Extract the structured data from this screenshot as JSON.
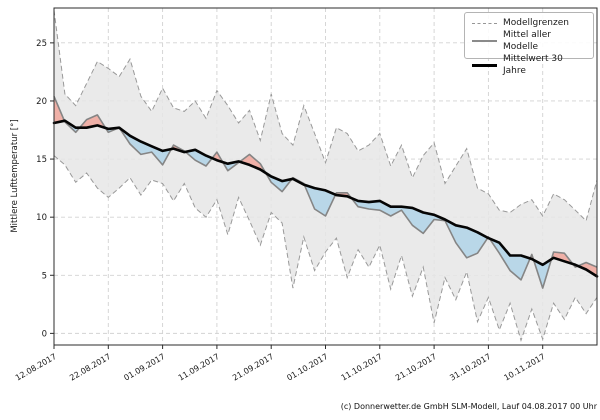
{
  "chart_data": {
    "type": "area",
    "title": "",
    "xlabel": "",
    "ylabel": "Mittlere Lufttemperatur [°]",
    "grid": true,
    "legend_position": "upper right",
    "ylim": [
      -1.0,
      28.0
    ],
    "xlim_days": [
      0,
      100
    ],
    "y_ticks": [
      0,
      5,
      10,
      15,
      20,
      25
    ],
    "x_tick_days": [
      0,
      10,
      20,
      30,
      40,
      50,
      60,
      70,
      80,
      90
    ],
    "x_tick_labels": [
      "12.08.2017",
      "22.08.2017",
      "01.09.2017",
      "11.09.2017",
      "21.09.2017",
      "01.10.2017",
      "11.10.2017",
      "21.10.2017",
      "31.10.2017",
      "10.11.2017"
    ],
    "legend": [
      {
        "label": "Modellgrenzen",
        "style": "dashed-gray-line"
      },
      {
        "label": "Mittel aller Modelle",
        "style": "solid-gray-line"
      },
      {
        "label": "Mittelwert 30 Jahre",
        "style": "thick-black-line"
      }
    ],
    "days": [
      0,
      2,
      4,
      6,
      8,
      10,
      12,
      14,
      16,
      18,
      20,
      22,
      24,
      26,
      28,
      30,
      32,
      34,
      36,
      38,
      40,
      42,
      44,
      46,
      48,
      50,
      52,
      54,
      56,
      58,
      60,
      62,
      64,
      66,
      68,
      70,
      72,
      74,
      76,
      78,
      80,
      82,
      84,
      86,
      88,
      90,
      92,
      94,
      96,
      98,
      100
    ],
    "series": [
      {
        "name": "Modellgrenzen (obere Grenze)",
        "values": [
          27.8,
          20.6,
          19.6,
          21.5,
          23.4,
          22.8,
          22.1,
          23.6,
          20.4,
          19.1,
          21.1,
          19.4,
          19.1,
          20.0,
          18.5,
          20.9,
          19.6,
          18.1,
          19.2,
          16.6,
          20.6,
          17.2,
          16.2,
          19.6,
          17.2,
          14.7,
          17.7,
          17.2,
          15.7,
          16.2,
          17.2,
          14.4,
          16.2,
          13.4,
          15.3,
          16.4,
          12.9,
          14.4,
          15.9,
          12.5,
          12.0,
          10.6,
          10.4,
          11.1,
          11.5,
          10.1,
          12.0,
          11.5,
          10.6,
          9.7,
          13.2
        ]
      },
      {
        "name": "Modellgrenzen (untere Grenze)",
        "values": [
          15.3,
          14.5,
          13.0,
          13.8,
          12.5,
          11.7,
          12.5,
          13.4,
          11.9,
          13.2,
          12.9,
          11.4,
          12.9,
          10.8,
          10.0,
          11.5,
          8.5,
          11.7,
          9.7,
          7.6,
          10.4,
          9.5,
          3.9,
          8.3,
          5.4,
          7.0,
          8.2,
          4.8,
          7.2,
          5.7,
          7.6,
          3.8,
          6.7,
          3.2,
          5.7,
          0.9,
          4.8,
          2.9,
          5.3,
          1.0,
          3.1,
          0.3,
          2.6,
          -0.6,
          2.1,
          -0.5,
          2.6,
          1.2,
          3.1,
          1.7,
          3.1
        ]
      },
      {
        "name": "Mittel aller Modelle",
        "values": [
          20.4,
          18.2,
          17.3,
          18.4,
          18.8,
          17.3,
          17.7,
          16.3,
          15.4,
          15.6,
          14.5,
          16.2,
          15.7,
          14.9,
          14.4,
          15.6,
          14.0,
          14.7,
          15.4,
          14.6,
          13.0,
          12.2,
          13.4,
          12.9,
          10.7,
          10.1,
          12.1,
          12.1,
          10.9,
          10.7,
          10.6,
          10.1,
          10.6,
          9.3,
          8.6,
          9.8,
          9.7,
          7.8,
          6.5,
          6.9,
          8.3,
          6.9,
          5.4,
          4.6,
          6.8,
          3.9,
          7.0,
          6.9,
          5.7,
          6.1,
          5.7
        ]
      },
      {
        "name": "Mittelwert 30 Jahre",
        "values": [
          18.1,
          18.3,
          17.7,
          17.7,
          17.9,
          17.6,
          17.7,
          17.0,
          16.5,
          16.1,
          15.7,
          15.9,
          15.6,
          15.8,
          15.3,
          14.9,
          14.6,
          14.8,
          14.5,
          14.1,
          13.5,
          13.1,
          13.3,
          12.8,
          12.5,
          12.3,
          11.9,
          11.8,
          11.4,
          11.3,
          11.4,
          10.9,
          10.9,
          10.8,
          10.4,
          10.2,
          9.8,
          9.3,
          9.1,
          8.7,
          8.2,
          7.8,
          6.7,
          6.7,
          6.4,
          5.9,
          6.5,
          6.2,
          5.9,
          5.5,
          4.9
        ]
      }
    ],
    "colors": {
      "band_fill": "#e6e6e6",
      "band_edge": "#999999",
      "model_line": "#858585",
      "mean30_line": "#050505",
      "warmer_fill": "#efb0a7",
      "colder_fill": "#b9d7e8",
      "grid": "#d2d2d2",
      "axis": "#2b2b2b"
    }
  },
  "footer": {
    "credit": "(c) Donnerwetter.de GmbH SLM-Modell, Lauf 04.08.2017 00 Uhr"
  }
}
